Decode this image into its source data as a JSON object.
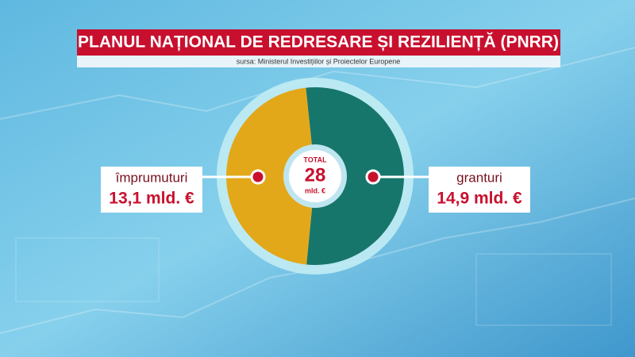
{
  "chart_data": {
    "type": "pie",
    "title": "PLANUL NAȚIONAL DE REDRESARE ȘI REZILIENȚĂ (PNRR)",
    "subtitle": "sursa: Ministerul Investițiilor și Proiectelor Europene",
    "categories": [
      "împrumuturi",
      "granturi"
    ],
    "values": [
      13.1,
      14.9
    ],
    "value_labels": [
      "13,1 mld. €",
      "14,9 mld. €"
    ],
    "colors": [
      "#e2a81a",
      "#17766c"
    ],
    "total": {
      "title": "TOTAL",
      "value": 28,
      "unit": "mld. €"
    }
  }
}
